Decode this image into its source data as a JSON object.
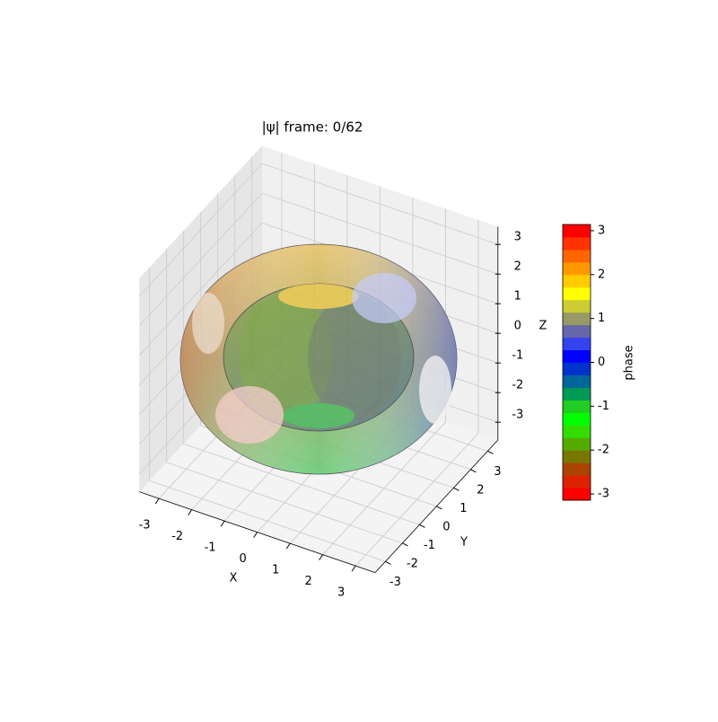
{
  "chart_data": {
    "type": "surface3d",
    "title": "|ψ| frame: 0/62",
    "xlabel": "X",
    "ylabel": "Y",
    "zlabel": "Z",
    "xlim": [
      -3.6,
      3.6
    ],
    "ylim": [
      -3.6,
      3.6
    ],
    "zlim": [
      -3.6,
      3.6
    ],
    "xticks": [
      -3,
      -2,
      -1,
      0,
      1,
      2,
      3
    ],
    "yticks": [
      -3,
      -2,
      -1,
      0,
      1,
      2,
      3
    ],
    "zticks": [
      -3,
      -2,
      -1,
      0,
      1,
      2,
      3
    ],
    "grid": true,
    "colorbar": {
      "label": "phase",
      "lim": [
        -3.14159,
        3.14159
      ],
      "ticks": [
        -3,
        -2,
        -1,
        0,
        1,
        2,
        3
      ],
      "colors": [
        "#ff0000",
        "#dd2200",
        "#aa4400",
        "#777700",
        "#55aa00",
        "#33dd00",
        "#00ff00",
        "#22cc22",
        "#009955",
        "#006699",
        "#0033cc",
        "#0000ff",
        "#3344ee",
        "#6666aa",
        "#999966",
        "#cccc33",
        "#ffff00",
        "#ffcc00",
        "#ff9900",
        "#ff6600",
        "#ff3300",
        "#ff0000"
      ]
    }
  }
}
